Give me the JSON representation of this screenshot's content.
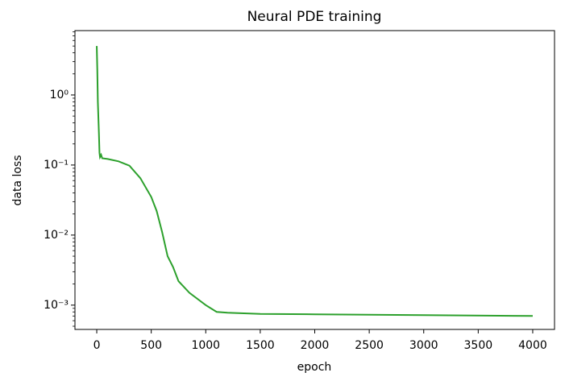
{
  "chart_data": {
    "type": "line",
    "title": "Neural PDE training",
    "x_label": "epoch",
    "y_label": "data loss",
    "x": [
      0,
      5,
      10,
      20,
      25,
      30,
      40,
      50,
      100,
      200,
      300,
      400,
      500,
      550,
      600,
      650,
      700,
      750,
      850,
      1000,
      1100,
      1200,
      1500,
      2000,
      3000,
      4000
    ],
    "series": [
      {
        "name": "data loss",
        "color": "#2ca02c",
        "values": [
          5.0,
          2.3,
          0.8,
          0.28,
          0.15,
          0.13,
          0.14,
          0.125,
          0.122,
          0.113,
          0.098,
          0.065,
          0.035,
          0.022,
          0.011,
          0.005,
          0.0035,
          0.0022,
          0.0015,
          0.001,
          0.0008,
          0.00078,
          0.00075,
          0.00074,
          0.00072,
          0.0007
        ]
      }
    ],
    "xlim": [
      -200,
      4200
    ],
    "xticks": [
      0,
      500,
      1000,
      1500,
      2000,
      2500,
      3000,
      3500,
      4000
    ],
    "ylim": [
      0.00045,
      8.3
    ],
    "log_y": true,
    "yticks": [
      {
        "value": 0.001,
        "label": "10⁻³"
      },
      {
        "value": 0.01,
        "label": "10⁻²"
      },
      {
        "value": 0.1,
        "label": "10⁻¹"
      },
      {
        "value": 1,
        "label": "10⁰"
      }
    ],
    "minor_yticks": [
      0.0005,
      0.0006,
      0.0007,
      0.0008,
      0.0009,
      0.002,
      0.003,
      0.004,
      0.005,
      0.006,
      0.007,
      0.008,
      0.009,
      0.02,
      0.03,
      0.04,
      0.05,
      0.06,
      0.07,
      0.08,
      0.09,
      0.2,
      0.3,
      0.4,
      0.5,
      0.6,
      0.7,
      0.8,
      0.9,
      2,
      3,
      4,
      5,
      6,
      7,
      8
    ]
  }
}
